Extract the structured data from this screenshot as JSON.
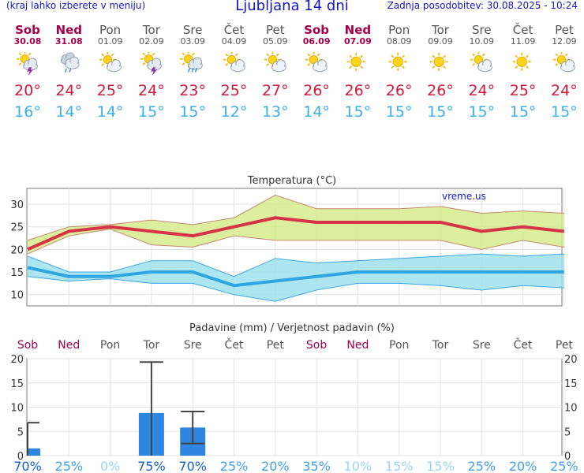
{
  "header": {
    "menu_note": "(kraj lahko izberete v meniju)",
    "title": "Ljubljana 14 dni",
    "updated": "Zadnja posodobitev: 30.08.2025 - 10:24"
  },
  "days": [
    {
      "name": "Sob",
      "date": "30.08",
      "weekend": true,
      "icon": "sun-cloud-thunder-icon",
      "tmax": "20°",
      "tmin": "16°"
    },
    {
      "name": "Ned",
      "date": "31.08",
      "weekend": true,
      "icon": "cloud-rain-icon",
      "tmax": "24°",
      "tmin": "14°"
    },
    {
      "name": "Pon",
      "date": "01.09",
      "weekend": false,
      "icon": "sun-cloud-icon",
      "tmax": "25°",
      "tmin": "14°"
    },
    {
      "name": "Tor",
      "date": "02.09",
      "weekend": false,
      "icon": "sun-cloud-thunder-icon",
      "tmax": "24°",
      "tmin": "15°"
    },
    {
      "name": "Sre",
      "date": "03.09",
      "weekend": false,
      "icon": "sun-cloud-rain-icon",
      "tmax": "23°",
      "tmin": "15°"
    },
    {
      "name": "Čet",
      "date": "04.09",
      "weekend": false,
      "icon": "sun-cloud-icon",
      "tmax": "25°",
      "tmin": "12°"
    },
    {
      "name": "Pet",
      "date": "05.09",
      "weekend": false,
      "icon": "sun-cloud-icon",
      "tmax": "27°",
      "tmin": "13°"
    },
    {
      "name": "Sob",
      "date": "06.09",
      "weekend": true,
      "icon": "sun-cloud-icon",
      "tmax": "26°",
      "tmin": "14°"
    },
    {
      "name": "Ned",
      "date": "07.09",
      "weekend": true,
      "icon": "sun-icon",
      "tmax": "26°",
      "tmin": "15°"
    },
    {
      "name": "Pon",
      "date": "08.09",
      "weekend": false,
      "icon": "sun-icon",
      "tmax": "26°",
      "tmin": "15°"
    },
    {
      "name": "Tor",
      "date": "09.09",
      "weekend": false,
      "icon": "sun-icon",
      "tmax": "26°",
      "tmin": "15°"
    },
    {
      "name": "Sre",
      "date": "10.09",
      "weekend": false,
      "icon": "sun-cloud-icon",
      "tmax": "24°",
      "tmin": "15°"
    },
    {
      "name": "Čet",
      "date": "11.09",
      "weekend": false,
      "icon": "sun-icon",
      "tmax": "25°",
      "tmin": "15°"
    },
    {
      "name": "Pet",
      "date": "12.09",
      "weekend": false,
      "icon": "sun-cloud-icon",
      "tmax": "24°",
      "tmin": "15°"
    }
  ],
  "colors": {
    "weekend": "#a4004a",
    "weekday": "#555555",
    "tmax_line": "#d63347",
    "tmax_band": "#d5ec8e",
    "tmin_line": "#2fa6e2",
    "tmin_band": "#9fe2ef",
    "bar": "#2f86e0",
    "prob_high": "#1560c0",
    "prob_mid": "#43a0e6",
    "prob_low": "#9bd6f2"
  },
  "chart_data": [
    {
      "type": "line",
      "title": "Temperatura (°C)",
      "watermark": "vreme.us",
      "x": [
        "30.08",
        "31.08",
        "01.09",
        "02.09",
        "03.09",
        "04.09",
        "05.09",
        "06.09",
        "07.09",
        "08.09",
        "09.09",
        "10.09",
        "11.09",
        "12.09"
      ],
      "ylim": [
        7.5,
        33.5
      ],
      "yticks": [
        10,
        15,
        20,
        25,
        30
      ],
      "ytick_labels": [
        "10",
        "15",
        "20",
        "25",
        "30"
      ],
      "series": [
        {
          "name": "max",
          "values": [
            20,
            24,
            25,
            24,
            23,
            25,
            27,
            26,
            26,
            26,
            26,
            24,
            25,
            24
          ],
          "band_low": [
            19,
            23,
            24.5,
            21,
            20.5,
            23,
            22,
            22,
            22,
            22,
            22,
            20,
            22,
            20.5
          ],
          "band_high": [
            22,
            25,
            25.5,
            26.5,
            25.5,
            27,
            32,
            29,
            29,
            29,
            29.5,
            28,
            28.5,
            28
          ]
        },
        {
          "name": "min",
          "values": [
            16,
            14,
            14,
            15,
            15,
            12,
            13,
            14,
            15,
            15,
            15,
            15,
            15,
            15
          ],
          "band_low": [
            14,
            13,
            13.5,
            12.5,
            12.5,
            10,
            8.5,
            11,
            12.5,
            12.5,
            12,
            11,
            12,
            11.5
          ],
          "band_high": [
            18.5,
            15,
            15,
            17.5,
            17.5,
            14,
            18,
            17,
            17.5,
            18,
            18.5,
            19,
            18.5,
            19
          ]
        }
      ]
    },
    {
      "type": "bar",
      "title": "Padavine (mm) / Verjetnost padavin (%)",
      "categories": [
        "Sob",
        "Ned",
        "Pon",
        "Tor",
        "Sre",
        "Čet",
        "Pet",
        "Sob",
        "Ned",
        "Pon",
        "Tor",
        "Sre",
        "Čet",
        "Pet"
      ],
      "weekend": [
        true,
        true,
        false,
        false,
        false,
        false,
        false,
        true,
        true,
        false,
        false,
        false,
        false,
        false
      ],
      "ylim": [
        0,
        20
      ],
      "yticks": [
        0,
        5,
        10,
        15,
        20
      ],
      "ytick_labels": [
        "0",
        "5",
        "10",
        "15",
        "20"
      ],
      "values": [
        1.5,
        0,
        0,
        8.8,
        5.8,
        0,
        0,
        0,
        0,
        0,
        0,
        0,
        0,
        0
      ],
      "error_low": [
        0,
        0,
        0,
        0,
        2.5,
        0,
        0,
        0,
        0,
        0,
        0,
        0,
        0,
        0
      ],
      "error_high": [
        6.8,
        0,
        0,
        19.3,
        9.1,
        0,
        0,
        0,
        0,
        0,
        0,
        0,
        0,
        0
      ],
      "probability_pct": [
        70,
        25,
        0,
        75,
        70,
        25,
        20,
        35,
        10,
        15,
        15,
        25,
        20,
        25
      ],
      "probability_labels": [
        "70%",
        "25%",
        "0%",
        "75%",
        "70%",
        "25%",
        "20%",
        "35%",
        "10%",
        "15%",
        "15%",
        "25%",
        "20%",
        "25%"
      ]
    }
  ]
}
